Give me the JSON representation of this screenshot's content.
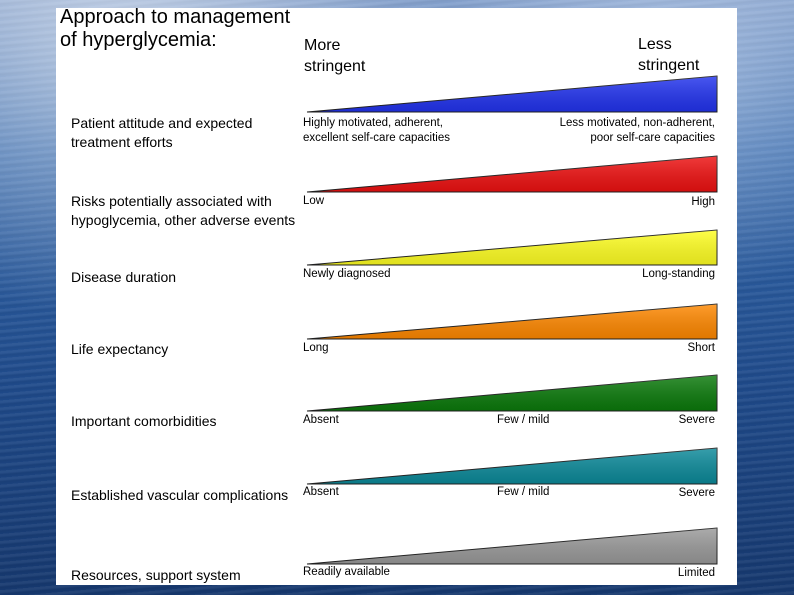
{
  "title": "Approach to management\nof hyperglycemia:",
  "header": {
    "left": "More\nstringent",
    "right": "Less\nstringent"
  },
  "rows": [
    {
      "label": "Patient attitude and expected treatment efforts",
      "left": "Highly motivated, adherent,\nexcellent self-care capacities",
      "right": "Less motivated, non-adherent,\npoor self-care capacities",
      "color": "#2233ee"
    },
    {
      "label": "Risks potentially associated with hypoglycemia, other adverse events",
      "left": "Low",
      "right": "High",
      "color": "#ee1111"
    },
    {
      "label": "Disease duration",
      "left": "Newly diagnosed",
      "right": "Long-standing",
      "color": "#ffff22"
    },
    {
      "label": "Life expectancy",
      "left": "Long",
      "right": "Short",
      "color": "#ff8800"
    },
    {
      "label": "Important comorbidities",
      "left": "Absent",
      "middle": "Few / mild",
      "right": "Severe",
      "color": "#0b7a0b"
    },
    {
      "label": "Established vascular complications",
      "left": "Absent",
      "middle": "Few / mild",
      "right": "Severe",
      "color": "#0c8a9a"
    },
    {
      "label": "Resources, support system",
      "left": "Readily available",
      "right": "Limited",
      "color": "#9a9a9a"
    }
  ]
}
